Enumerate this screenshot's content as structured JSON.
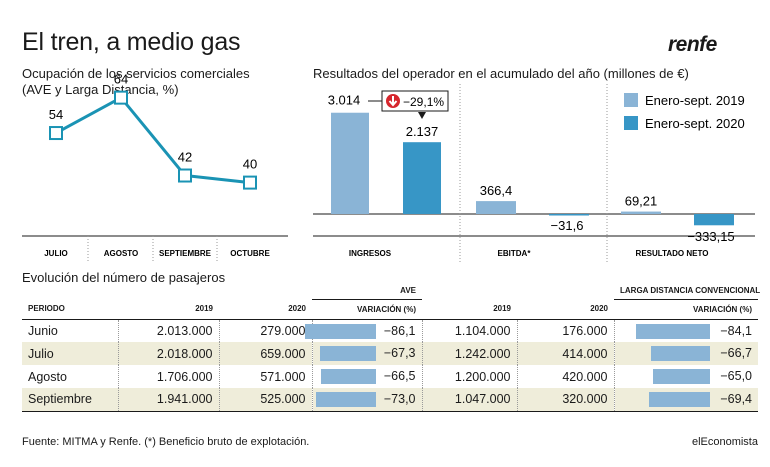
{
  "title": "El tren, a medio gas",
  "brand_logo": "renfe",
  "occupancy": {
    "title_line1": "Ocupación de los servicios comerciales",
    "title_line2": "(AVE y Larga Distancia, %)"
  },
  "results": {
    "title": "Resultados del operador en el acumulado del año (millones de €)",
    "callout": "−29,1%"
  },
  "passengers": {
    "title": "Evolución del número de pasajeros",
    "group_ave": "AVE",
    "group_ld": "LARGA DISTANCIA CONVENCIONAL",
    "headers": [
      "PERIODO",
      "2019",
      "2020",
      "VARIACIÓN (%)",
      "2019",
      "2020",
      "VARIACIÓN (%)"
    ],
    "rows": [
      {
        "periodo": "Junio",
        "ave_2019": "2.013.000",
        "ave_2020": "279.000",
        "ave_var": "−86,1",
        "ave_var_num": -86.1,
        "ld_2019": "1.104.000",
        "ld_2020": "176.000",
        "ld_var": "−84,1",
        "ld_var_num": -84.1
      },
      {
        "periodo": "Julio",
        "ave_2019": "2.018.000",
        "ave_2020": "659.000",
        "ave_var": "−67,3",
        "ave_var_num": -67.3,
        "ld_2019": "1.242.000",
        "ld_2020": "414.000",
        "ld_var": "−66,7",
        "ld_var_num": -66.7
      },
      {
        "periodo": "Agosto",
        "ave_2019": "1.706.000",
        "ave_2020": "571.000",
        "ave_var": "−66,5",
        "ave_var_num": -66.5,
        "ld_2019": "1.200.000",
        "ld_2020": "420.000",
        "ld_var": "−65,0",
        "ld_var_num": -65.0
      },
      {
        "periodo": "Septiembre",
        "ave_2019": "1.941.000",
        "ave_2020": "525.000",
        "ave_var": "−73,0",
        "ave_var_num": -73.0,
        "ld_2019": "1.047.000",
        "ld_2020": "320.000",
        "ld_var": "−69,4",
        "ld_var_num": -69.4
      }
    ]
  },
  "footer": {
    "source": "Fuente: MITMA y Renfe. (*) Beneficio bruto de explotación.",
    "brand": "elEconomista"
  },
  "colors": {
    "line": "#1a93b4",
    "bar_2019": "#8ab4d6",
    "bar_2020": "#3796c6",
    "table_bar": "#8ab4d6",
    "row_shade": "#efedda",
    "callout_red": "#d6262d"
  },
  "chart_data": [
    {
      "type": "line",
      "categories": [
        "JULIO",
        "AGOSTO",
        "SEPTIEMBRE",
        "OCTUBRE"
      ],
      "values": [
        54,
        64,
        42,
        40
      ],
      "labels": [
        "54",
        "64",
        "42",
        "40"
      ],
      "title": "Ocupación de los servicios comerciales (AVE y Larga Distancia, %)",
      "ylim": [
        30,
        70
      ],
      "grid": false
    },
    {
      "type": "bar",
      "categories": [
        "INGRESOS",
        "EBITDA*",
        "RESULTADO NETO"
      ],
      "series": [
        {
          "name": "Enero-sept. 2019",
          "values": [
            3014,
            366.4,
            69.21
          ],
          "labels": [
            "3.014",
            "366,4",
            "69,21"
          ]
        },
        {
          "name": "Enero-sept. 2020",
          "values": [
            2137,
            -31.6,
            -333.15
          ],
          "labels": [
            "2.137",
            "−31,6",
            "−333,15"
          ]
        }
      ],
      "title": "Resultados del operador en el acumulado del año (millones de €)",
      "legend": "top-right",
      "annotation": "−29,1%",
      "grid": false
    }
  ]
}
